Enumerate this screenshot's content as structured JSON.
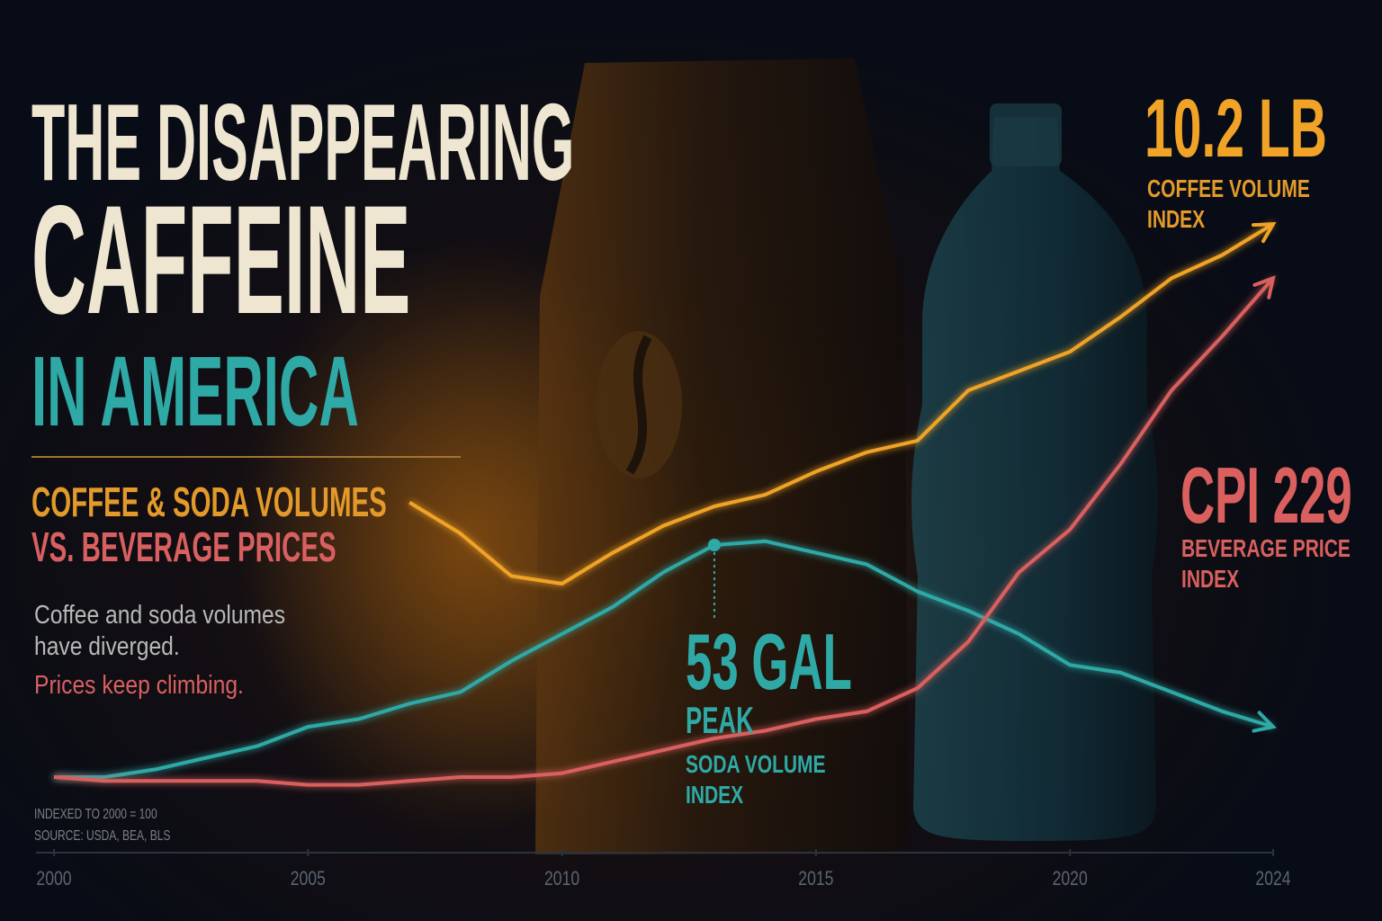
{
  "header": {
    "title_lines": [
      "THE DISAPPEARING",
      "CAFFEINE",
      "IN AMERICA"
    ],
    "subtitle_lines": [
      "COFFEE & SODA VOLUMES",
      "VS. BEVERAGE PRICES"
    ],
    "description_lines": [
      "Coffee and soda volumes",
      "have diverged."
    ],
    "highlight": "Prices keep climbing.",
    "notes": [
      "INDEXED TO 2000 = 100",
      "SOURCE: USDA, BEA, BLS"
    ]
  },
  "chart_data": {
    "type": "line",
    "x": [
      2000,
      2001,
      2002,
      2003,
      2004,
      2005,
      2006,
      2007,
      2008,
      2009,
      2010,
      2011,
      2012,
      2013,
      2014,
      2015,
      2016,
      2017,
      2018,
      2019,
      2020,
      2021,
      2022,
      2023,
      2024
    ],
    "xlim": [
      2000,
      2024
    ],
    "xticks": [
      2000,
      2005,
      2010,
      2015,
      2020,
      2024
    ],
    "ylim": [
      80,
      260
    ],
    "series": [
      {
        "name": "COFFEE VOLUME INDEX",
        "callout": "10.2 LB",
        "color": "#f0a326",
        "values": [
          null,
          null,
          null,
          null,
          null,
          null,
          null,
          171,
          163,
          152,
          150,
          158,
          165,
          170,
          173,
          179,
          184,
          187,
          200,
          205,
          210,
          219,
          229,
          235,
          243
        ]
      },
      {
        "name": "SODA VOLUME INDEX",
        "callout": "53 GAL",
        "callout_note": "PEAK",
        "peak_index": 13,
        "color": "#2fa9a6",
        "values": [
          100,
          100,
          102,
          105,
          108,
          113,
          115,
          119,
          122,
          130,
          137,
          144,
          153,
          160,
          161,
          158,
          155,
          148,
          143,
          137,
          129,
          127,
          122,
          117,
          113
        ]
      },
      {
        "name": "BEVERAGE PRICE INDEX",
        "callout": "CPI 229",
        "color": "#d9605e",
        "values": [
          100,
          99,
          99,
          99,
          99,
          98,
          98,
          99,
          100,
          100,
          101,
          104,
          107,
          110,
          112,
          115,
          117,
          123,
          135,
          153,
          164,
          181,
          200,
          214,
          229
        ]
      }
    ]
  }
}
